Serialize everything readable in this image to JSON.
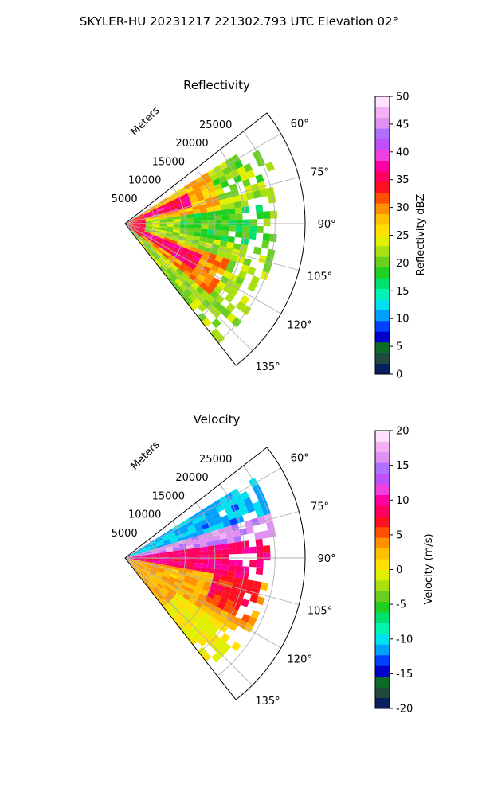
{
  "figure": {
    "title": "SKYLER-HU  20231217  221302.793 UTC Elevation 02°"
  },
  "chart_data": [
    {
      "type": "heatmap",
      "title": "Reflectivity",
      "radial_axis_label": "Meters",
      "radial_ticks": [
        "5000",
        "10000",
        "15000",
        "20000",
        "25000"
      ],
      "radial_tick_values": [
        5000,
        10000,
        15000,
        20000,
        25000
      ],
      "radial_range": [
        0,
        30000
      ],
      "azimuth_ticks": [
        "60°",
        "75°",
        "90°",
        "105°",
        "120°",
        "135°"
      ],
      "azimuth_tick_values": [
        60,
        75,
        90,
        105,
        120,
        135
      ],
      "azimuth_range": [
        52,
        142
      ],
      "grid": true,
      "colorbar": {
        "label": "Reflectivity dBZ",
        "range": [
          0,
          50
        ],
        "tick_labels": [
          "0",
          "5",
          "10",
          "15",
          "20",
          "25",
          "30",
          "35",
          "40",
          "45",
          "50"
        ],
        "colors": [
          "#0a1f5e",
          "#1f4a3c",
          "#0b6b27",
          "#0000c8",
          "#0040ff",
          "#00a0ff",
          "#00e0f0",
          "#00f5b0",
          "#00e070",
          "#20d020",
          "#6ad020",
          "#a8e010",
          "#e0f000",
          "#ffe000",
          "#ffc000",
          "#ff9000",
          "#ff5000",
          "#ff1020",
          "#ff0060",
          "#ff00a0",
          "#f040e0",
          "#c050ff",
          "#b070ff",
          "#e090f0",
          "#f4b0f4",
          "#ffe0ff"
        ]
      },
      "regions": [
        {
          "az": [
            58,
            142
          ],
          "r": [
            0,
            25500
          ],
          "dbz": 22
        },
        {
          "az": [
            58,
            82
          ],
          "r": [
            0,
            16000
          ],
          "dbz": 28
        },
        {
          "az": [
            110,
            130
          ],
          "r": [
            1500,
            19000
          ],
          "dbz": 30
        },
        {
          "az": [
            64,
            75
          ],
          "r": [
            3000,
            11500
          ],
          "dbz": 36
        },
        {
          "az": [
            112,
            125
          ],
          "r": [
            4000,
            14000
          ],
          "dbz": 36
        },
        {
          "az": [
            62,
            130
          ],
          "r": [
            0,
            3000
          ],
          "dbz": 34
        },
        {
          "az": [
            82,
            100
          ],
          "r": [
            9000,
            24000
          ],
          "dbz": 19
        },
        {
          "az": [
            60,
            72
          ],
          "r": [
            16000,
            26000
          ],
          "dbz": 21
        }
      ]
    },
    {
      "type": "heatmap",
      "title": "Velocity",
      "radial_axis_label": "Meters",
      "radial_ticks": [
        "5000",
        "10000",
        "15000",
        "20000",
        "25000"
      ],
      "radial_tick_values": [
        5000,
        10000,
        15000,
        20000,
        25000
      ],
      "radial_range": [
        0,
        30000
      ],
      "azimuth_ticks": [
        "60°",
        "75°",
        "90°",
        "105°",
        "120°",
        "135°"
      ],
      "azimuth_tick_values": [
        60,
        75,
        90,
        105,
        120,
        135
      ],
      "azimuth_range": [
        52,
        142
      ],
      "grid": true,
      "colorbar": {
        "label": "Velocity (m/s)",
        "range": [
          -20,
          20
        ],
        "tick_labels": [
          "-20",
          "-15",
          "-10",
          "-5",
          "0",
          "5",
          "10",
          "15",
          "20"
        ],
        "colors": [
          "#0a1f5e",
          "#1f4a3c",
          "#0b6b27",
          "#0000c8",
          "#0040ff",
          "#00a0ff",
          "#00e0f0",
          "#00f5b0",
          "#00e070",
          "#20d020",
          "#6ad020",
          "#a8e010",
          "#e0f000",
          "#ffe000",
          "#ffc000",
          "#ff9000",
          "#ff5000",
          "#ff1020",
          "#ff0060",
          "#ff00a0",
          "#f040e0",
          "#c050ff",
          "#b070ff",
          "#e090f0",
          "#f4b0f4",
          "#ffe0ff"
        ]
      },
      "regions": [
        {
          "az": [
            58,
            73
          ],
          "r": [
            0,
            25500
          ],
          "vel": -11
        },
        {
          "az": [
            73,
            88
          ],
          "r": [
            0,
            25500
          ],
          "vel": 16
        },
        {
          "az": [
            82,
            100
          ],
          "r": [
            0,
            24500
          ],
          "vel": 9
        },
        {
          "az": [
            100,
            142
          ],
          "r": [
            0,
            24000
          ],
          "vel": 3
        },
        {
          "az": [
            100,
            118
          ],
          "r": [
            15000,
            23000
          ],
          "vel": 7
        },
        {
          "az": [
            125,
            142
          ],
          "r": [
            10000,
            24000
          ],
          "vel": 0
        }
      ]
    }
  ]
}
